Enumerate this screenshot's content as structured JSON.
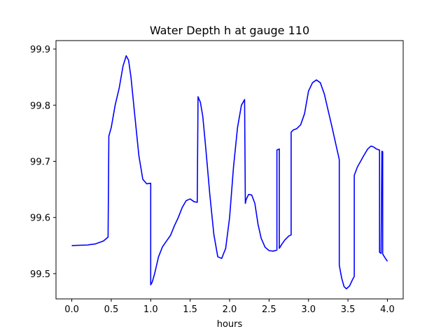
{
  "chart_data": {
    "type": "line",
    "title": "Water Depth h at gauge 110",
    "xlabel": "hours",
    "ylabel": "",
    "xlim": [
      -0.2,
      4.2
    ],
    "ylim": [
      99.455,
      99.915
    ],
    "x_ticks": [
      0.0,
      0.5,
      1.0,
      1.5,
      2.0,
      2.5,
      3.0,
      3.5,
      4.0
    ],
    "x_tick_labels": [
      "0.0",
      "0.5",
      "1.0",
      "1.5",
      "2.0",
      "2.5",
      "3.0",
      "3.5",
      "4.0"
    ],
    "y_ticks": [
      99.5,
      99.6,
      99.7,
      99.8,
      99.9
    ],
    "y_tick_labels": [
      "99.5",
      "99.6",
      "99.7",
      "99.8",
      "99.9"
    ],
    "grid": false,
    "legend": "none",
    "series": [
      {
        "color": "#0000ff",
        "x": [
          0.0,
          0.2,
          0.3,
          0.4,
          0.46,
          0.47,
          0.5,
          0.55,
          0.6,
          0.65,
          0.69,
          0.72,
          0.75,
          0.8,
          0.85,
          0.9,
          0.95,
          1.0,
          1.0,
          1.02,
          1.05,
          1.1,
          1.15,
          1.2,
          1.25,
          1.3,
          1.35,
          1.4,
          1.45,
          1.5,
          1.55,
          1.59,
          1.6,
          1.63,
          1.66,
          1.7,
          1.75,
          1.8,
          1.85,
          1.9,
          1.95,
          2.0,
          2.05,
          2.1,
          2.15,
          2.19,
          2.2,
          2.21,
          2.24,
          2.28,
          2.32,
          2.36,
          2.4,
          2.45,
          2.5,
          2.55,
          2.6,
          2.6,
          2.63,
          2.63,
          2.66,
          2.7,
          2.75,
          2.78,
          2.78,
          2.81,
          2.85,
          2.9,
          2.95,
          3.0,
          3.05,
          3.1,
          3.15,
          3.2,
          3.25,
          3.3,
          3.35,
          3.39,
          3.39,
          3.42,
          3.45,
          3.48,
          3.52,
          3.56,
          3.58,
          3.58,
          3.62,
          3.66,
          3.7,
          3.75,
          3.79,
          3.82,
          3.86,
          3.9,
          3.9,
          3.92,
          3.93,
          3.94,
          3.94,
          3.97,
          4.0
        ],
        "y": [
          99.55,
          99.551,
          99.553,
          99.558,
          99.565,
          99.745,
          99.76,
          99.8,
          99.83,
          99.87,
          99.888,
          99.88,
          99.85,
          99.78,
          99.71,
          99.668,
          99.66,
          99.661,
          99.48,
          99.485,
          99.5,
          99.53,
          99.548,
          99.558,
          99.568,
          99.585,
          99.6,
          99.618,
          99.63,
          99.633,
          99.628,
          99.627,
          99.815,
          99.805,
          99.78,
          99.72,
          99.64,
          99.57,
          99.53,
          99.527,
          99.545,
          99.6,
          99.69,
          99.76,
          99.8,
          99.81,
          99.625,
          99.632,
          99.641,
          99.64,
          99.625,
          99.588,
          99.563,
          99.547,
          99.541,
          99.54,
          99.542,
          99.72,
          99.722,
          99.545,
          99.552,
          99.56,
          99.567,
          99.569,
          99.752,
          99.756,
          99.758,
          99.765,
          99.785,
          99.825,
          99.84,
          99.845,
          99.84,
          99.82,
          99.79,
          99.76,
          99.728,
          99.703,
          99.515,
          99.492,
          99.477,
          99.473,
          99.478,
          99.49,
          99.495,
          99.675,
          99.69,
          99.7,
          99.71,
          99.722,
          99.727,
          99.726,
          99.722,
          99.72,
          99.538,
          99.536,
          99.718,
          99.717,
          99.535,
          99.528,
          99.522
        ]
      }
    ]
  }
}
